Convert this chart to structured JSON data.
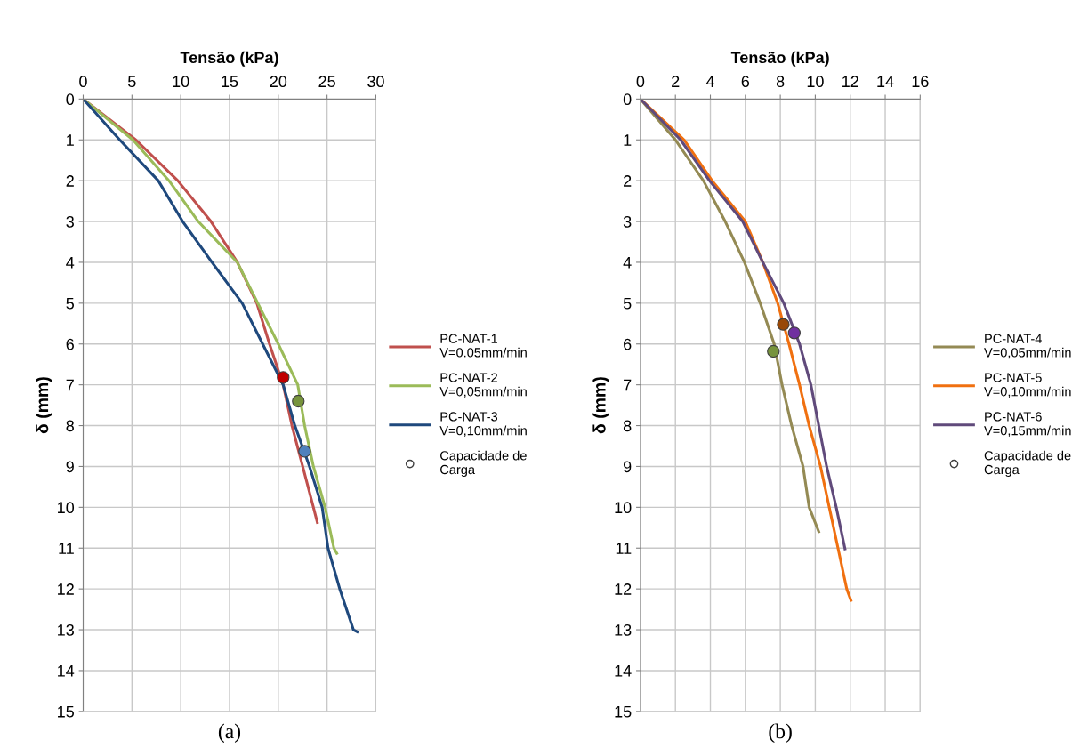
{
  "chart_data": [
    {
      "type": "line",
      "xlabel": "Tensão (kPa)",
      "ylabel": "δ (mm)",
      "xlim": [
        0,
        30
      ],
      "xticks": [
        0,
        5,
        10,
        15,
        20,
        25,
        30
      ],
      "ylim": [
        15,
        0
      ],
      "yticks": [
        0,
        1,
        2,
        3,
        4,
        5,
        6,
        7,
        8,
        9,
        10,
        11,
        12,
        13,
        14,
        15
      ],
      "grid": true,
      "legend": "right",
      "marker": "none",
      "annotations": [
        "(a)"
      ],
      "series": [
        {
          "name": "PC-NAT-1\nV=0.05mm/min",
          "color": "#c0504d",
          "x": [
            0,
            5.4,
            9.7,
            13.1,
            15.8,
            17.8,
            19.1,
            20.5,
            21.4,
            22.5,
            23.6,
            24.0
          ],
          "values": [
            0,
            1,
            2,
            3,
            4,
            5,
            6,
            7,
            8,
            9,
            10,
            10.37
          ]
        },
        {
          "name": "PC-NAT-2\nV=0,05mm/min",
          "color": "#9bbb59",
          "x": [
            0,
            5.1,
            8.8,
            11.8,
            15.8,
            17.9,
            20.0,
            22.0,
            22.7,
            23.6,
            24.8,
            25.7,
            26.0
          ],
          "values": [
            0,
            1,
            2,
            3,
            4,
            5,
            6,
            7,
            8,
            9,
            10,
            11,
            11.13
          ]
        },
        {
          "name": "PC-NAT-3\nV=0,10mm/min",
          "color": "#1f497d",
          "x": [
            0,
            3.75,
            7.7,
            10.2,
            13.2,
            16.3,
            18.4,
            20.5,
            21.7,
            23.2,
            24.5,
            25.1,
            26.3,
            27.7,
            28.1
          ],
          "values": [
            0,
            1,
            2,
            3,
            4,
            5,
            6,
            7,
            8,
            9,
            10,
            11,
            12,
            13,
            13.05
          ]
        },
        {
          "name": "Capacidade de\nCarga",
          "type": "scatter",
          "marker": "circle",
          "colors": [
            "#c00000",
            "#77933c",
            "#4f81bd"
          ],
          "x": [
            20.5,
            22.05,
            22.7
          ],
          "values": [
            6.82,
            7.4,
            8.63
          ]
        }
      ]
    },
    {
      "type": "line",
      "xlabel": "Tensão (kPa)",
      "ylabel": "δ (mm)",
      "xlim": [
        0,
        16
      ],
      "xticks": [
        0,
        2,
        4,
        6,
        8,
        10,
        12,
        14,
        16
      ],
      "ylim": [
        15,
        0
      ],
      "yticks": [
        0,
        1,
        2,
        3,
        4,
        5,
        6,
        7,
        8,
        9,
        10,
        11,
        12,
        13,
        14,
        15
      ],
      "grid": true,
      "legend": "right",
      "marker": "none",
      "annotations": [
        "(b)"
      ],
      "series": [
        {
          "name": "PC-NAT-4\nV=0,05mm/min",
          "color": "#948a54",
          "x": [
            0,
            2.0,
            3.6,
            4.85,
            5.95,
            6.85,
            7.65,
            8.1,
            8.65,
            9.3,
            9.65,
            10.2
          ],
          "values": [
            0,
            1,
            2,
            3,
            4,
            5,
            6,
            7,
            8,
            9,
            10,
            10.6
          ]
        },
        {
          "name": "PC-NAT-5\nV=0,10mm/min",
          "color": "#f07010",
          "x": [
            0,
            2.5,
            4.1,
            6.0,
            7.0,
            7.85,
            8.5,
            9.1,
            9.65,
            10.3,
            10.8,
            11.3,
            11.8,
            12.04
          ],
          "values": [
            0,
            1,
            2,
            3,
            4,
            5,
            6,
            7,
            8,
            9,
            10,
            11,
            12,
            12.28
          ]
        },
        {
          "name": "PC-NAT-6\nV=0,15mm/min",
          "color": "#604a7b",
          "x": [
            0,
            2.3,
            3.95,
            5.85,
            7.0,
            8.2,
            9.1,
            9.75,
            10.2,
            10.65,
            11.2,
            11.7
          ],
          "values": [
            0,
            1,
            2,
            3,
            4,
            5,
            6,
            7,
            8,
            9,
            10,
            11.02
          ]
        },
        {
          "name": "Capacidade de\nCarga",
          "type": "scatter",
          "marker": "circle",
          "colors": [
            "#77933c",
            "#984807",
            "#7030a0"
          ],
          "x": [
            7.6,
            8.17,
            8.8
          ],
          "values": [
            6.18,
            5.52,
            5.73
          ]
        }
      ]
    }
  ]
}
